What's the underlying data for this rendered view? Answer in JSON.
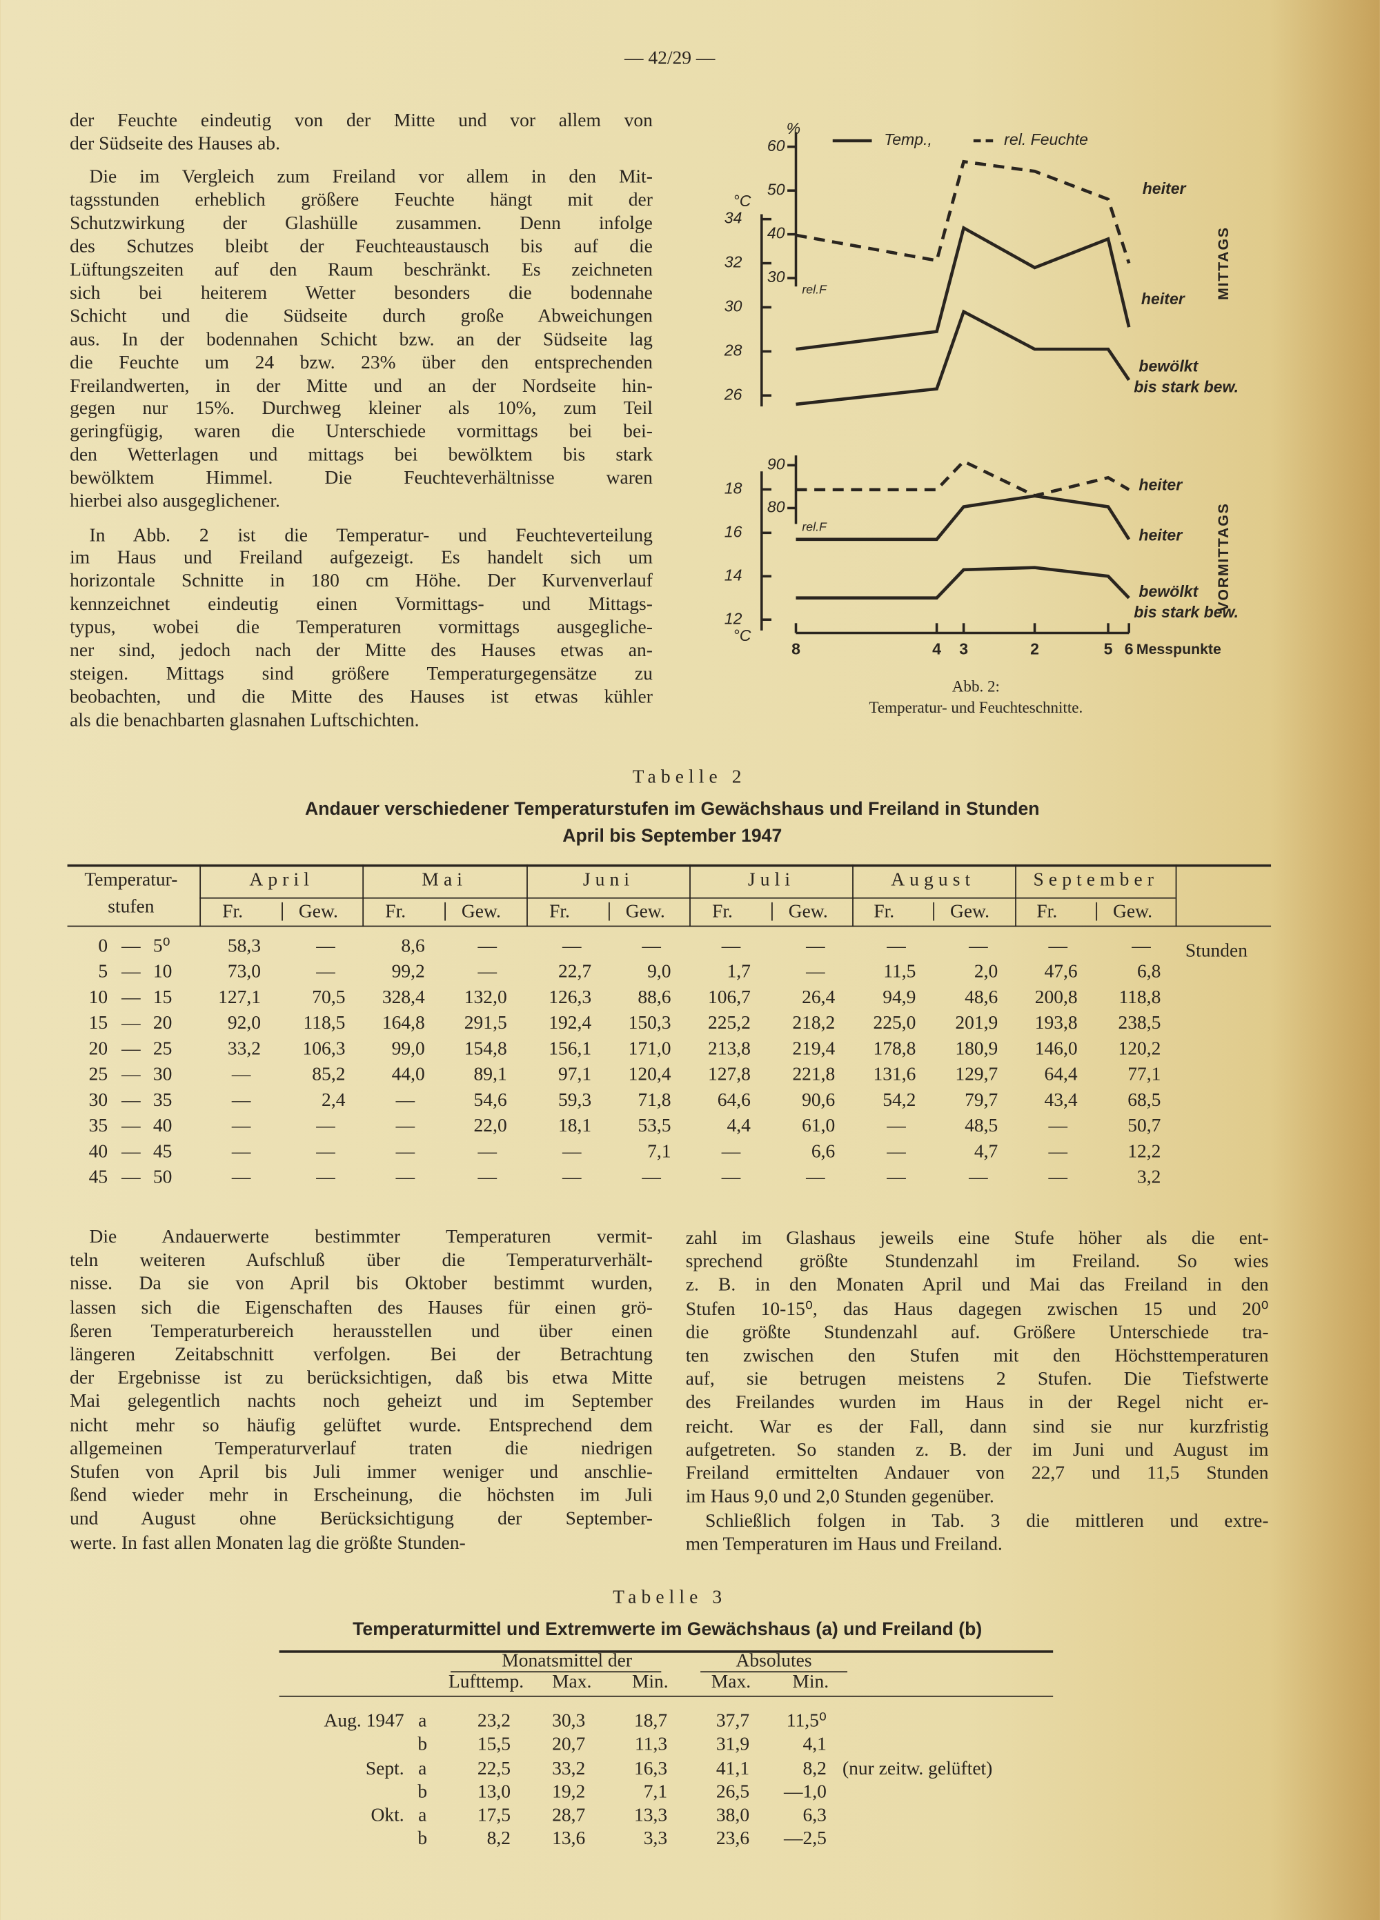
{
  "header": {
    "page_number": "— 42/29 —"
  },
  "left_column": [
    [
      "der Feuchte eindeutig von der Mitte und vor allem von",
      "der Südseite des Hauses ab."
    ],
    [
      "Die im Vergleich zum Freiland vor allem in den Mit-",
      "tagsstunden erheblich größere Feuchte hängt mit der",
      "Schutzwirkung der Glashülle zusammen. Denn infolge",
      "des Schutzes bleibt der Feuchteaustausch bis auf die",
      "Lüftungszeiten auf den Raum beschränkt. Es zeichneten",
      "sich bei heiterem Wetter besonders die bodennahe",
      "Schicht und die Südseite durch große Abweichungen",
      "aus. In der bodennahen Schicht bzw. an der Südseite lag",
      "die Feuchte um 24 bzw. 23% über den entsprechenden",
      "Freilandwerten, in der Mitte und an der Nordseite hin-",
      "gegen nur 15%. Durchweg kleiner als 10%, zum Teil",
      "geringfügig, waren die Unterschiede vormittags bei bei-",
      "den Wetterlagen und mittags bei bewölktem bis stark",
      "bewölktem Himmel. Die Feuchteverhältnisse waren",
      "hierbei also ausgeglichener."
    ],
    [
      "In Abb. 2 ist die Temperatur- und Feuchteverteilung",
      "im Haus und Freiland aufgezeigt. Es handelt sich um",
      "horizontale Schnitte in 180 cm Höhe. Der Kurvenverlauf",
      "kennzeichnet eindeutig einen Vormittags- und Mittags-",
      "typus, wobei die Temperaturen vormittags ausgegliche-",
      "ner sind, jedoch nach der Mitte des Hauses etwas an-",
      "steigen. Mittags sind größere Temperaturgegensätze zu",
      "beobachten, und die Mitte des Hauses ist etwas kühler",
      "als die benachbarten glasnahen Luftschichten."
    ]
  ],
  "figure": {
    "legend": [
      {
        "label": "Temp.,",
        "dashed": false
      },
      {
        "label": "rel. Feuchte",
        "dashed": true
      }
    ],
    "x_categories": [
      "8",
      "4",
      "3",
      "2",
      "5",
      "6"
    ],
    "x_label": "Messpunkte",
    "panels": [
      {
        "title": "MITTAGS",
        "y_unit": "°C",
        "ylim": [
          25,
          35
        ],
        "yticks": [
          26,
          28,
          30,
          32,
          34
        ],
        "y2_unit": "%",
        "y2_sublabel": "rel.F",
        "y2lim": [
          25,
          65
        ],
        "y2ticks": [
          30,
          40,
          50,
          60
        ],
        "series": [
          {
            "axis": "y2",
            "dashed": true,
            "labels": [
              "heiter"
            ],
            "values": [
              39.8,
              34,
              56.6,
              54.4,
              48,
              33.4
            ]
          },
          {
            "axis": "y",
            "dashed": false,
            "labels": [
              "heiter"
            ],
            "values": [
              28.1,
              28.9,
              33.6,
              31.8,
              33.1,
              29.1
            ]
          },
          {
            "axis": "y",
            "dashed": false,
            "labels": [
              "bewölkt",
              "bis stark bew."
            ],
            "values": [
              25.6,
              26.3,
              29.8,
              28.1,
              28.1,
              26.7
            ]
          }
        ]
      },
      {
        "title": "VORMITTAGS",
        "y_unit": "°C",
        "ylim": [
          11.5,
          19
        ],
        "yticks": [
          12,
          14,
          16,
          18
        ],
        "y2_sublabel": "rel.F",
        "y2lim": [
          78,
          92
        ],
        "y2ticks": [
          80,
          90
        ],
        "series": [
          {
            "axis": "y2",
            "dashed": true,
            "labels": [
              "heiter"
            ],
            "values": [
              84.3,
              84.3,
              90.9,
              82.9,
              87.1,
              84.3
            ]
          },
          {
            "axis": "y",
            "dashed": false,
            "labels": [
              "heiter"
            ],
            "values": [
              15.7,
              15.7,
              17.2,
              17.7,
              17.2,
              15.7
            ]
          },
          {
            "axis": "y",
            "dashed": false,
            "labels": [
              "bewölkt",
              "bis stark bew."
            ],
            "values": [
              13,
              13,
              14.3,
              14.4,
              14,
              13
            ]
          }
        ]
      }
    ],
    "caption": [
      "Abb. 2:",
      "Temperatur- und Feuchteschnitte."
    ]
  },
  "table2": {
    "label": "Tabelle 2",
    "title": "Andauer verschiedener Temperaturstufen im Gewächshaus und Freiland in Stunden",
    "subtitle": "April bis September 1947",
    "first_header": [
      "Temperatur-",
      "stufen"
    ],
    "months": [
      "April",
      "Mai",
      "Juni",
      "Juli",
      "August",
      "September"
    ],
    "sub_headers": [
      "Fr.",
      "Gew."
    ],
    "unit": "Stunden",
    "rows": [
      {
        "range": [
          "0",
          "—",
          "5⁰"
        ],
        "values": [
          "58,3",
          "—",
          "8,6",
          "—",
          "—",
          "—",
          "—",
          "—",
          "—",
          "—",
          "—",
          "—"
        ]
      },
      {
        "range": [
          "5",
          "—",
          "10"
        ],
        "values": [
          "73,0",
          "—",
          "99,2",
          "—",
          "22,7",
          "9,0",
          "1,7",
          "—",
          "11,5",
          "2,0",
          "47,6",
          "6,8"
        ]
      },
      {
        "range": [
          "10",
          "—",
          "15"
        ],
        "values": [
          "127,1",
          "70,5",
          "328,4",
          "132,0",
          "126,3",
          "88,6",
          "106,7",
          "26,4",
          "94,9",
          "48,6",
          "200,8",
          "118,8"
        ]
      },
      {
        "range": [
          "15",
          "—",
          "20"
        ],
        "values": [
          "92,0",
          "118,5",
          "164,8",
          "291,5",
          "192,4",
          "150,3",
          "225,2",
          "218,2",
          "225,0",
          "201,9",
          "193,8",
          "238,5"
        ]
      },
      {
        "range": [
          "20",
          "—",
          "25"
        ],
        "values": [
          "33,2",
          "106,3",
          "99,0",
          "154,8",
          "156,1",
          "171,0",
          "213,8",
          "219,4",
          "178,8",
          "180,9",
          "146,0",
          "120,2"
        ]
      },
      {
        "range": [
          "25",
          "—",
          "30"
        ],
        "values": [
          "—",
          "85,2",
          "44,0",
          "89,1",
          "97,1",
          "120,4",
          "127,8",
          "221,8",
          "131,6",
          "129,7",
          "64,4",
          "77,1"
        ]
      },
      {
        "range": [
          "30",
          "—",
          "35"
        ],
        "values": [
          "—",
          "2,4",
          "—",
          "54,6",
          "59,3",
          "71,8",
          "64,6",
          "90,6",
          "54,2",
          "79,7",
          "43,4",
          "68,5"
        ]
      },
      {
        "range": [
          "35",
          "—",
          "40"
        ],
        "values": [
          "—",
          "—",
          "—",
          "22,0",
          "18,1",
          "53,5",
          "4,4",
          "61,0",
          "—",
          "48,5",
          "—",
          "50,7"
        ]
      },
      {
        "range": [
          "40",
          "—",
          "45"
        ],
        "values": [
          "—",
          "—",
          "—",
          "—",
          "—",
          "7,1",
          "—",
          "6,6",
          "—",
          "4,7",
          "—",
          "12,2"
        ]
      },
      {
        "range": [
          "45",
          "—",
          "50"
        ],
        "values": [
          "—",
          "—",
          "—",
          "—",
          "—",
          "—",
          "—",
          "—",
          "—",
          "—",
          "—",
          "3,2"
        ]
      }
    ]
  },
  "bottom_left": [
    [
      "Die Andauerwerte bestimmter Temperaturen vermit-",
      "teln weiteren Aufschluß über die Temperaturverhält-",
      "nisse. Da sie von April bis Oktober bestimmt wurden,",
      "lassen sich die Eigenschaften des Hauses für einen grö-",
      "ßeren Temperaturbereich herausstellen und über einen",
      "längeren Zeitabschnitt verfolgen. Bei der Betrachtung",
      "der Ergebnisse ist zu berücksichtigen, daß bis etwa Mitte",
      "Mai gelegentlich nachts noch geheizt und im September",
      "nicht mehr so häufig gelüftet wurde. Entsprechend dem",
      "allgemeinen Temperaturverlauf traten die niedrigen",
      "Stufen von April bis Juli immer weniger und anschlie-",
      "ßend wieder mehr in Erscheinung, die höchsten im Juli",
      "und August ohne Berücksichtigung der September-",
      "werte. In fast allen Monaten lag die größte Stunden-"
    ]
  ],
  "bottom_right": [
    [
      "zahl im Glashaus jeweils eine Stufe höher als die ent-",
      "sprechend größte Stundenzahl im Freiland. So wies",
      "z. B. in den Monaten April und Mai das Freiland in den",
      "Stufen 10-15⁰, das Haus dagegen zwischen 15 und 20⁰",
      "die größte Stundenzahl auf. Größere Unterschiede tra-",
      "ten zwischen den Stufen mit den Höchsttemperaturen",
      "auf, sie betrugen meistens 2 Stufen. Die Tiefstwerte",
      "des Freilandes wurden im Haus in der Regel nicht er-",
      "reicht. War es der Fall, dann sind sie nur kurzfristig",
      "aufgetreten. So standen z. B. der im Juni und August im",
      "Freiland ermittelten Andauer von 22,7 und 11,5 Stunden",
      "im Haus 9,0 und 2,0 Stunden gegenüber."
    ],
    [
      "Schließlich folgen in Tab. 3 die mittleren und extre-",
      "men Temperaturen im Haus und Freiland."
    ]
  ],
  "table3": {
    "label": "Tabelle 3",
    "title": "Temperaturmittel und Extremwerte im Gewächshaus (a) und Freiland (b)",
    "group_headers": [
      "Monatsmittel der",
      "Absolutes"
    ],
    "headers": [
      "Lufttemp.",
      "Max.",
      "Min.",
      "Max.",
      "Min."
    ],
    "rows": [
      {
        "label": "Aug. 1947",
        "site": "a",
        "values": [
          "23,2",
          "30,3",
          "18,7",
          "37,7",
          "11,5⁰"
        ]
      },
      {
        "site": "b",
        "values": [
          "15,5",
          "20,7",
          "11,3",
          "31,9",
          "4,1"
        ]
      },
      {
        "label": "Sept.",
        "site": "a",
        "values": [
          "22,5",
          "33,2",
          "16,3",
          "41,1",
          "8,2"
        ],
        "note": "(nur zeitw. gelüftet)"
      },
      {
        "site": "b",
        "values": [
          "13,0",
          "19,2",
          "7,1",
          "26,5",
          "—1,0"
        ]
      },
      {
        "label": "Okt.",
        "site": "a",
        "values": [
          "17,5",
          "28,7",
          "13,3",
          "38,0",
          "6,3"
        ]
      },
      {
        "site": "b",
        "values": [
          "8,2",
          "13,6",
          "3,3",
          "23,6",
          "—2,5"
        ]
      }
    ]
  }
}
